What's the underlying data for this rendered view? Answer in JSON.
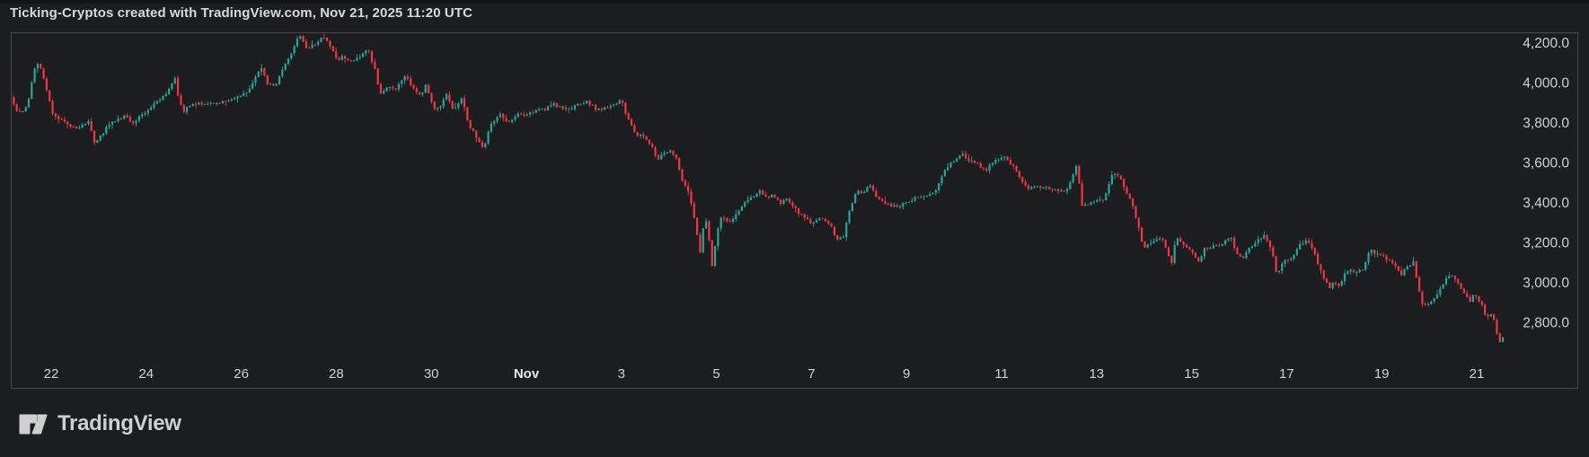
{
  "title": "Ticking-Cryptos created with TradingView.com, Nov 21, 2025 11:20 UTC",
  "branding": {
    "logo_text": "TradingView"
  },
  "chart_data": {
    "type": "candlestick",
    "title": "Ticking-Cryptos created with TradingView.com, Nov 21, 2025 11:20 UTC",
    "legend_position": "none",
    "grid": false,
    "colors": {
      "up": "#26a69a",
      "down": "#f23645",
      "axis_text": "#ced1d5",
      "month_text": "#e8e9eb",
      "frame": "#45474d",
      "background": "#1c1d1f"
    },
    "y_axis": {
      "side": "right",
      "tick_labels": [
        "4,200.0",
        "4,000.0",
        "3,800.0",
        "3,600.0",
        "3,400.0",
        "3,200.0",
        "3,000.0",
        "2,800.0"
      ],
      "tick_values": [
        4200,
        4000,
        3800,
        3600,
        3400,
        3200,
        3000,
        2800
      ],
      "ylim": [
        2475,
        4255
      ]
    },
    "x_axis": {
      "side": "bottom",
      "ticks": [
        {
          "label": "22",
          "t": 0
        },
        {
          "label": "24",
          "t": 2
        },
        {
          "label": "26",
          "t": 4
        },
        {
          "label": "28",
          "t": 6
        },
        {
          "label": "30",
          "t": 8
        },
        {
          "label": "Nov",
          "t": 10,
          "bold": true
        },
        {
          "label": "3",
          "t": 12
        },
        {
          "label": "5",
          "t": 14
        },
        {
          "label": "7",
          "t": 16
        },
        {
          "label": "9",
          "t": 18
        },
        {
          "label": "11",
          "t": 20
        },
        {
          "label": "13",
          "t": 22
        },
        {
          "label": "15",
          "t": 24
        },
        {
          "label": "17",
          "t": 26
        },
        {
          "label": "19",
          "t": 28
        },
        {
          "label": "21",
          "t": 30
        }
      ],
      "t_unit": "days since Oct 22 00:00 UTC",
      "visible_range_t": [
        -0.85,
        30.6
      ]
    },
    "price_path": [
      [
        -0.83,
        3960
      ],
      [
        -0.64,
        3845
      ],
      [
        -0.45,
        3880
      ],
      [
        -0.26,
        4110
      ],
      [
        -0.13,
        4060
      ],
      [
        0.11,
        3835
      ],
      [
        0.34,
        3810
      ],
      [
        0.59,
        3770
      ],
      [
        0.87,
        3810
      ],
      [
        0.96,
        3700
      ],
      [
        1.06,
        3720
      ],
      [
        1.29,
        3800
      ],
      [
        1.63,
        3840
      ],
      [
        1.76,
        3790
      ],
      [
        1.95,
        3840
      ],
      [
        2.38,
        3920
      ],
      [
        2.67,
        4020
      ],
      [
        2.74,
        3930
      ],
      [
        2.84,
        3855
      ],
      [
        2.99,
        3890
      ],
      [
        3.27,
        3900
      ],
      [
        3.55,
        3895
      ],
      [
        3.84,
        3920
      ],
      [
        4.16,
        3950
      ],
      [
        4.5,
        4080
      ],
      [
        4.59,
        4000
      ],
      [
        4.78,
        3990
      ],
      [
        4.97,
        4080
      ],
      [
        5.16,
        4180
      ],
      [
        5.31,
        4245
      ],
      [
        5.44,
        4170
      ],
      [
        5.63,
        4200
      ],
      [
        5.79,
        4230
      ],
      [
        5.92,
        4190
      ],
      [
        6.07,
        4120
      ],
      [
        6.2,
        4130
      ],
      [
        6.39,
        4115
      ],
      [
        6.64,
        4150
      ],
      [
        6.73,
        4165
      ],
      [
        6.86,
        4080
      ],
      [
        6.99,
        3950
      ],
      [
        7.15,
        3980
      ],
      [
        7.33,
        3975
      ],
      [
        7.52,
        4035
      ],
      [
        7.71,
        3960
      ],
      [
        7.85,
        3935
      ],
      [
        7.94,
        3990
      ],
      [
        8.13,
        3870
      ],
      [
        8.24,
        3880
      ],
      [
        8.37,
        3944
      ],
      [
        8.53,
        3855
      ],
      [
        8.7,
        3930
      ],
      [
        8.85,
        3790
      ],
      [
        9.04,
        3720
      ],
      [
        9.17,
        3675
      ],
      [
        9.32,
        3800
      ],
      [
        9.51,
        3840
      ],
      [
        9.7,
        3800
      ],
      [
        9.89,
        3850
      ],
      [
        10.08,
        3840
      ],
      [
        10.27,
        3860
      ],
      [
        10.45,
        3870
      ],
      [
        10.61,
        3900
      ],
      [
        10.83,
        3870
      ],
      [
        11.02,
        3875
      ],
      [
        11.3,
        3910
      ],
      [
        11.55,
        3870
      ],
      [
        11.78,
        3880
      ],
      [
        12.06,
        3910
      ],
      [
        12.21,
        3820
      ],
      [
        12.34,
        3750
      ],
      [
        12.53,
        3730
      ],
      [
        12.68,
        3690
      ],
      [
        12.82,
        3620
      ],
      [
        12.91,
        3640
      ],
      [
        13.06,
        3660
      ],
      [
        13.2,
        3640
      ],
      [
        13.33,
        3520
      ],
      [
        13.48,
        3450
      ],
      [
        13.61,
        3300
      ],
      [
        13.72,
        3150
      ],
      [
        13.78,
        3280
      ],
      [
        13.88,
        3320
      ],
      [
        13.95,
        3060
      ],
      [
        14.05,
        3200
      ],
      [
        14.14,
        3330
      ],
      [
        14.33,
        3300
      ],
      [
        14.46,
        3340
      ],
      [
        14.61,
        3390
      ],
      [
        14.8,
        3430
      ],
      [
        14.99,
        3465
      ],
      [
        15.12,
        3420
      ],
      [
        15.27,
        3440
      ],
      [
        15.43,
        3400
      ],
      [
        15.56,
        3420
      ],
      [
        15.75,
        3360
      ],
      [
        15.9,
        3330
      ],
      [
        16.07,
        3300
      ],
      [
        16.26,
        3330
      ],
      [
        16.45,
        3290
      ],
      [
        16.6,
        3220
      ],
      [
        16.73,
        3230
      ],
      [
        16.88,
        3380
      ],
      [
        17.01,
        3460
      ],
      [
        17.16,
        3450
      ],
      [
        17.3,
        3490
      ],
      [
        17.45,
        3430
      ],
      [
        17.64,
        3400
      ],
      [
        17.83,
        3380
      ],
      [
        18.02,
        3400
      ],
      [
        18.2,
        3420
      ],
      [
        18.39,
        3430
      ],
      [
        18.64,
        3450
      ],
      [
        18.81,
        3540
      ],
      [
        19.0,
        3600
      ],
      [
        19.21,
        3650
      ],
      [
        19.34,
        3620
      ],
      [
        19.53,
        3600
      ],
      [
        19.72,
        3560
      ],
      [
        19.91,
        3610
      ],
      [
        20.13,
        3640
      ],
      [
        20.34,
        3570
      ],
      [
        20.47,
        3510
      ],
      [
        20.62,
        3470
      ],
      [
        20.85,
        3480
      ],
      [
        21.13,
        3470
      ],
      [
        21.42,
        3460
      ],
      [
        21.65,
        3590
      ],
      [
        21.76,
        3380
      ],
      [
        21.89,
        3400
      ],
      [
        22.04,
        3410
      ],
      [
        22.21,
        3420
      ],
      [
        22.4,
        3555
      ],
      [
        22.55,
        3540
      ],
      [
        22.68,
        3450
      ],
      [
        22.8,
        3400
      ],
      [
        22.93,
        3300
      ],
      [
        23.06,
        3170
      ],
      [
        23.18,
        3200
      ],
      [
        23.4,
        3220
      ],
      [
        23.5,
        3200
      ],
      [
        23.63,
        3090
      ],
      [
        23.74,
        3240
      ],
      [
        23.88,
        3190
      ],
      [
        24.03,
        3170
      ],
      [
        24.2,
        3110
      ],
      [
        24.35,
        3175
      ],
      [
        24.5,
        3180
      ],
      [
        24.67,
        3190
      ],
      [
        24.88,
        3230
      ],
      [
        25.01,
        3150
      ],
      [
        25.14,
        3130
      ],
      [
        25.26,
        3170
      ],
      [
        25.39,
        3200
      ],
      [
        25.58,
        3240
      ],
      [
        25.77,
        3150
      ],
      [
        25.86,
        3040
      ],
      [
        26.01,
        3120
      ],
      [
        26.14,
        3110
      ],
      [
        26.33,
        3190
      ],
      [
        26.47,
        3215
      ],
      [
        26.62,
        3160
      ],
      [
        26.75,
        3080
      ],
      [
        26.84,
        3020
      ],
      [
        26.96,
        2980
      ],
      [
        27.05,
        3000
      ],
      [
        27.18,
        2990
      ],
      [
        27.28,
        3050
      ],
      [
        27.41,
        3070
      ],
      [
        27.52,
        3050
      ],
      [
        27.66,
        3070
      ],
      [
        27.81,
        3165
      ],
      [
        27.94,
        3150
      ],
      [
        28.09,
        3130
      ],
      [
        28.22,
        3110
      ],
      [
        28.36,
        3080
      ],
      [
        28.47,
        3040
      ],
      [
        28.6,
        3085
      ],
      [
        28.73,
        3105
      ],
      [
        28.85,
        2960
      ],
      [
        28.94,
        2880
      ],
      [
        29.07,
        2900
      ],
      [
        29.17,
        2920
      ],
      [
        29.3,
        2970
      ],
      [
        29.41,
        3020
      ],
      [
        29.55,
        3040
      ],
      [
        29.68,
        3000
      ],
      [
        29.79,
        2950
      ],
      [
        29.92,
        2910
      ],
      [
        30.02,
        2950
      ],
      [
        30.15,
        2900
      ],
      [
        30.25,
        2830
      ],
      [
        30.36,
        2850
      ],
      [
        30.45,
        2800
      ],
      [
        30.53,
        2700
      ],
      [
        30.59,
        2720
      ]
    ]
  }
}
